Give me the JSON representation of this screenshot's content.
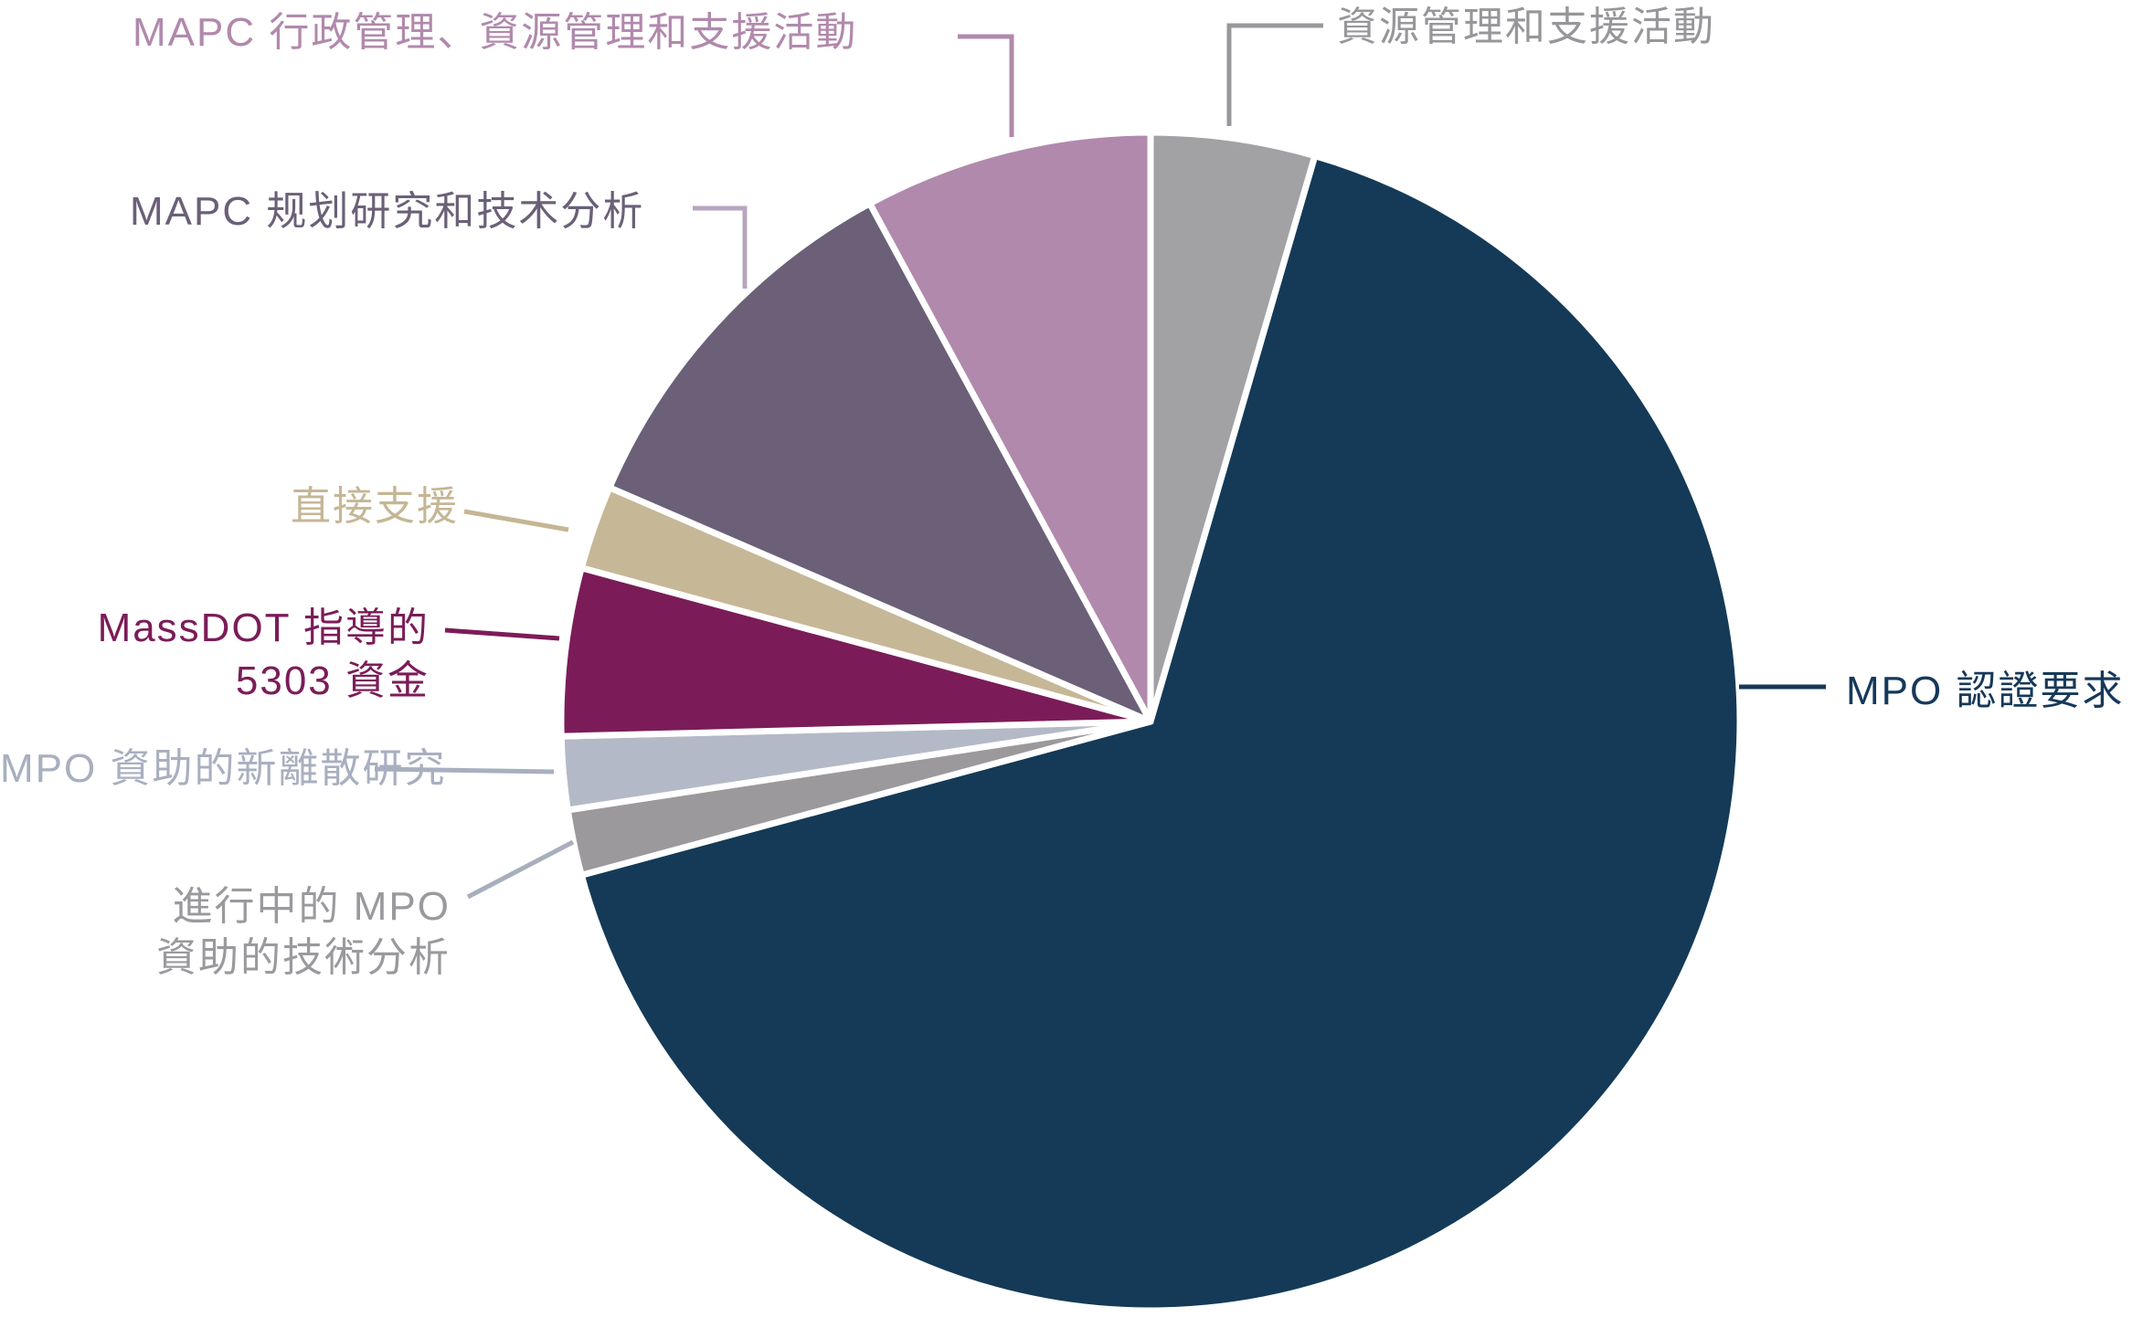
{
  "chart_data": {
    "type": "pie",
    "title": "",
    "legend_position": "callout-labels",
    "direction": "clockwise",
    "start_angle": "12-o-clock",
    "separator_color": "#ffffff",
    "note": "values are percentages estimated from slice angles; no numeric labels are shown in the image",
    "slices": [
      {
        "label": "資源管理和支援活動",
        "value": 4.5,
        "color": "#a2a1a4"
      },
      {
        "label": "MPO 認證要求",
        "value": 66.3,
        "color": "#143a57"
      },
      {
        "label": "進行中的 MPO 資助的技術分析",
        "value": 1.8,
        "color": "#9b999c"
      },
      {
        "label": "MPO 資助的新離散研究",
        "value": 2.0,
        "color": "#b3b9c6"
      },
      {
        "label": "MassDOT 指導的 5303 資金",
        "value": 4.6,
        "color": "#7b1c58"
      },
      {
        "label": "直接支援",
        "value": 2.3,
        "color": "#c6b797"
      },
      {
        "label": "MAPC 规划研究和技术分析",
        "value": 10.6,
        "color": "#6b6078"
      },
      {
        "label": "MAPC 行政管理、資源管理和支援活動",
        "value": 7.9,
        "color": "#b189ac"
      }
    ]
  },
  "callouts": {
    "resource_support": {
      "text": "資源管理和支援活動",
      "color": "#97969a",
      "leader_color": "#98979b"
    },
    "mapc_admin": {
      "text": "MAPC 行政管理、資源管理和支援活動",
      "color": "#b189ac",
      "leader_color": "#b189ac"
    },
    "mapc_planning": {
      "text": "MAPC 规划研究和技术分析",
      "color": "#6b6078",
      "leader_color": "#b7a5c0"
    },
    "direct_support": {
      "text": "直接支援",
      "color": "#c5b695",
      "leader_color": "#c5b695"
    },
    "massdot_5303": {
      "text": "MassDOT 指導的\n5303 資金",
      "color": "#7b1c58",
      "leader_color": "#7b1c58"
    },
    "mpo_discrete": {
      "text": "MPO 資助的新離散研究",
      "color": "#a8afbf",
      "leader_color": "#a8afbf"
    },
    "ongoing_mpo": {
      "text": "進行中的 MPO\n資助的技術分析",
      "color": "#9a999d",
      "leader_color": "#a8aebc"
    },
    "mpo_certification": {
      "text": "MPO 認證要求",
      "color": "#16395a",
      "leader_color": "#16395a"
    }
  }
}
